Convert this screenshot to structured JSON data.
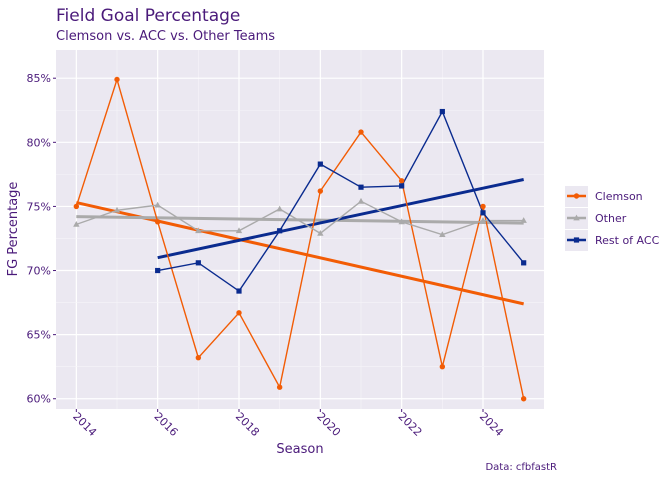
{
  "chart_data": {
    "type": "line",
    "title": "Field Goal Percentage",
    "subtitle": "Clemson vs. ACC vs. Other Teams",
    "xlabel": "Season",
    "ylabel": "FG Percentage",
    "caption": "Data: cfbfastR",
    "xlim": [
      2013.5,
      2025.5
    ],
    "ylim": [
      59.2,
      87.2
    ],
    "x_ticks": [
      2014,
      2016,
      2018,
      2020,
      2022,
      2024
    ],
    "y_ticks": [
      60,
      65,
      70,
      75,
      80,
      85
    ],
    "y_tick_suffix": "%",
    "grid": true,
    "legend_position": "right",
    "series": [
      {
        "name": "Clemson",
        "color": "#F25C05",
        "marker": "circle",
        "x": [
          2014,
          2015,
          2016,
          2017,
          2018,
          2019,
          2020,
          2021,
          2022,
          2023,
          2024,
          2025
        ],
        "y": [
          75.0,
          84.9,
          73.8,
          63.2,
          66.7,
          60.9,
          76.2,
          80.8,
          77.0,
          62.5,
          75.0,
          60.0
        ],
        "trend": [
          75.3,
          67.4
        ]
      },
      {
        "name": "Other",
        "color": "#AAAAAA",
        "marker": "triangle",
        "x": [
          2014,
          2015,
          2016,
          2017,
          2018,
          2019,
          2020,
          2021,
          2022,
          2023,
          2024,
          2025
        ],
        "y": [
          73.6,
          74.7,
          75.1,
          73.1,
          73.1,
          74.8,
          72.9,
          75.4,
          73.8,
          72.8,
          73.9,
          73.9
        ],
        "trend": [
          74.2,
          73.7
        ]
      },
      {
        "name": "Rest of ACC",
        "color": "#0A2B8F",
        "marker": "square",
        "x": [
          2016,
          2017,
          2018,
          2019,
          2020,
          2021,
          2022,
          2023,
          2024,
          2025
        ],
        "y": [
          70.0,
          70.6,
          68.4,
          73.1,
          78.3,
          76.5,
          76.6,
          82.4,
          74.5,
          70.6
        ],
        "trend": [
          71.0,
          77.1
        ]
      }
    ]
  }
}
